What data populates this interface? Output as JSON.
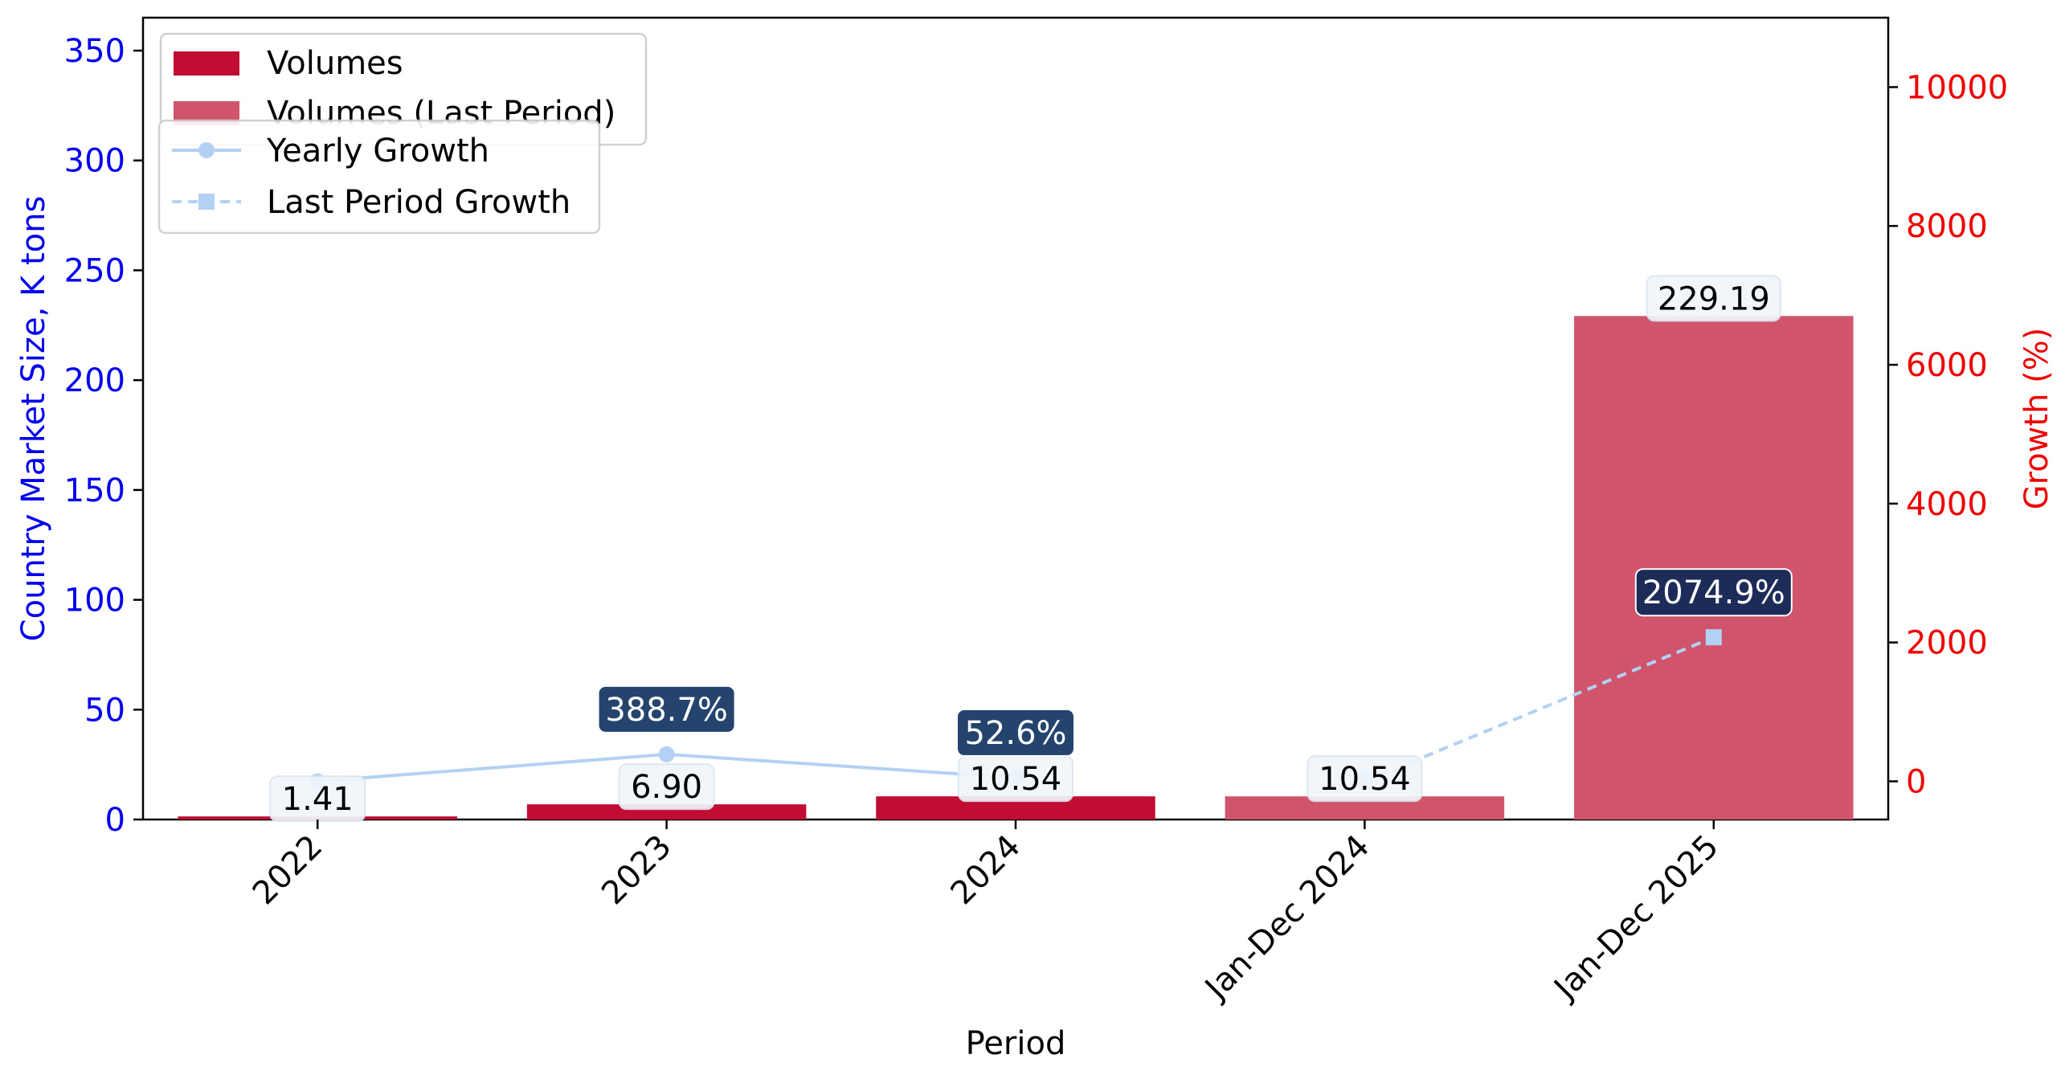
{
  "chart_data": {
    "type": "bar",
    "xlabel": "Period",
    "ylabel_left": "Country Market Size, K tons",
    "ylabel_right": "Growth (%)",
    "categories": [
      "2022",
      "2023",
      "2024",
      "Jan-Dec 2024",
      "Jan-Dec 2025"
    ],
    "ylim_left": [
      0,
      365
    ],
    "yticks_left": [
      0,
      50,
      100,
      150,
      200,
      250,
      300,
      350
    ],
    "ylim_right": [
      -550,
      11000
    ],
    "yticks_right": [
      0,
      2000,
      4000,
      6000,
      8000,
      10000
    ],
    "bars": [
      {
        "category": "2022",
        "value": 1.41,
        "label": "1.41",
        "series": "Volumes"
      },
      {
        "category": "2023",
        "value": 6.9,
        "label": "6.90",
        "series": "Volumes"
      },
      {
        "category": "2024",
        "value": 10.54,
        "label": "10.54",
        "series": "Volumes"
      },
      {
        "category": "Jan-Dec 2024",
        "value": 10.54,
        "label": "10.54",
        "series": "Volumes (Last Period)"
      },
      {
        "category": "Jan-Dec 2025",
        "value": 229.19,
        "label": "229.19",
        "series": "Volumes (Last Period)"
      }
    ],
    "lines": [
      {
        "name": "Yearly Growth",
        "style": "solid",
        "marker": "circle",
        "points": [
          {
            "category": "2022",
            "value": 0,
            "label": ""
          },
          {
            "category": "2023",
            "value": 388.7,
            "label": "388.7%"
          },
          {
            "category": "2024",
            "value": 52.6,
            "label": "52.6%"
          }
        ]
      },
      {
        "name": "Last Period Growth",
        "style": "dashed",
        "marker": "square",
        "points": [
          {
            "category": "Jan-Dec 2024",
            "value": 0,
            "label": ""
          },
          {
            "category": "Jan-Dec 2025",
            "value": 2074.9,
            "label": "2074.9%"
          }
        ]
      }
    ],
    "legend_bars": [
      "Volumes",
      "Volumes (Last Period)"
    ],
    "legend_lines": [
      "Yearly Growth",
      "Last Period Growth"
    ],
    "legend_position": "top-left",
    "grid": false
  },
  "colors": {
    "volumes": "#c10d33",
    "volumes_last": "#d1546d",
    "growth_line": "#b3d1f5",
    "left_axis": "#0000ee",
    "right_axis": "#ee0000",
    "growth_label_bg_dark": "#24446e",
    "growth_label_bg_darker": "#1c2b58",
    "value_label_bg": "#f0f6fb"
  }
}
